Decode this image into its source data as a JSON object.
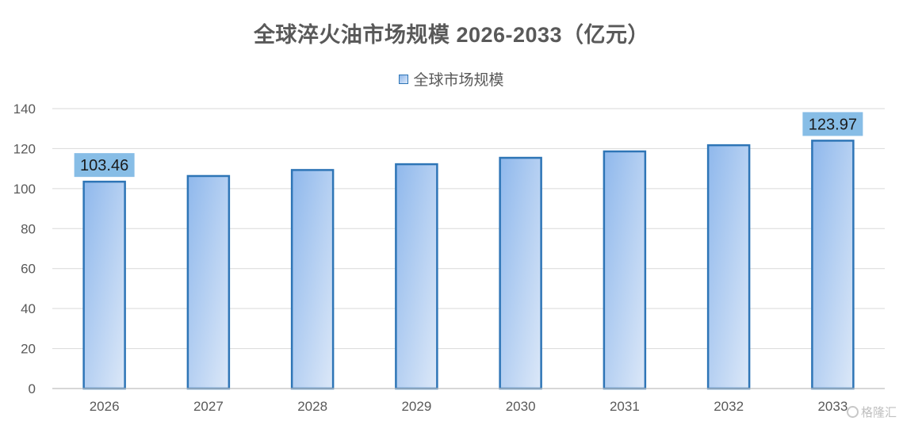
{
  "chart_data": {
    "type": "bar",
    "title": "全球淬火油市场规模 2026-2033（亿元）",
    "categories": [
      "2026",
      "2027",
      "2028",
      "2029",
      "2030",
      "2031",
      "2032",
      "2033"
    ],
    "series": [
      {
        "name": "全球市场规模",
        "values": [
          103.46,
          106.3,
          109.3,
          112.2,
          115.4,
          118.6,
          121.7,
          123.97
        ]
      }
    ],
    "data_labels": [
      {
        "category": "2026",
        "text": "103.46"
      },
      {
        "category": "2033",
        "text": "123.97"
      }
    ],
    "ylim": [
      0,
      140
    ],
    "yticks": [
      0,
      20,
      40,
      60,
      80,
      100,
      120,
      140
    ],
    "grid": true,
    "legend_position": "top-center",
    "colors": {
      "bar_border": "#2e75b6",
      "bar_fill_start": "#8fb8ec",
      "bar_fill_end": "#dce8f8",
      "label_background": "#87bde6",
      "grid": "#d9d9d9"
    }
  },
  "watermark": {
    "icon": "gelonghui-logo-icon",
    "text": "格隆汇"
  }
}
